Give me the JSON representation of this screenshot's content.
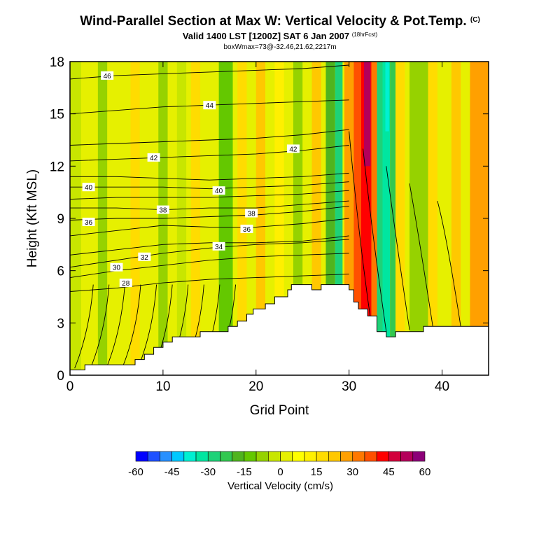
{
  "header": {
    "title": "Wind-Parallel Section at Max W: Vertical Velocity & Pot.Temp.",
    "title_mark": "(C)",
    "valid_line": "Valid 1400 LST [1200Z] SAT 6 Jan 2007",
    "forecast_tag": "(18hrFcst)",
    "box_line": "boxWmax=73@-32.46,21.62,2217m"
  },
  "chart_data": {
    "type": "heatmap",
    "xlabel": "Grid Point",
    "ylabel": "Height (Kft MSL)",
    "xlim": [
      0,
      45
    ],
    "ylim": [
      0,
      18
    ],
    "xticks": [
      0,
      10,
      20,
      30,
      40
    ],
    "yticks": [
      0,
      3,
      6,
      9,
      12,
      15,
      18
    ],
    "colorbar": {
      "label": "Vertical Velocity (cm/s)",
      "levels": [
        -60,
        -55,
        -50,
        -45,
        -40,
        -35,
        -30,
        -25,
        -20,
        -15,
        -10,
        -5,
        0,
        5,
        10,
        15,
        20,
        25,
        30,
        35,
        40,
        45,
        50,
        55,
        60
      ],
      "tick_labels": [
        -60,
        -45,
        -30,
        -15,
        0,
        15,
        30,
        45,
        60
      ],
      "colors": [
        "#0000ff",
        "#1e50ff",
        "#2890ff",
        "#00c8ff",
        "#00f0d2",
        "#00e6a0",
        "#1ed278",
        "#32c850",
        "#50b41e",
        "#64c800",
        "#96d200",
        "#c8e600",
        "#e6f000",
        "#ffff00",
        "#fff000",
        "#ffdc00",
        "#ffc800",
        "#ffa000",
        "#ff7800",
        "#ff5000",
        "#ff0000",
        "#d2003c",
        "#b4005a",
        "#8c0078"
      ]
    },
    "terrain": [
      [
        0,
        0.3
      ],
      [
        1.6,
        0.3
      ],
      [
        1.6,
        0.6
      ],
      [
        7,
        0.6
      ],
      [
        7,
        0.9
      ],
      [
        8,
        0.9
      ],
      [
        8,
        1.2
      ],
      [
        9,
        1.2
      ],
      [
        9,
        1.6
      ],
      [
        10,
        1.6
      ],
      [
        10,
        1.9
      ],
      [
        11,
        1.9
      ],
      [
        11,
        2.2
      ],
      [
        14,
        2.2
      ],
      [
        14,
        2.5
      ],
      [
        17,
        2.5
      ],
      [
        17,
        2.8
      ],
      [
        18,
        2.8
      ],
      [
        18,
        3.1
      ],
      [
        19,
        3.1
      ],
      [
        19,
        3.5
      ],
      [
        19.7,
        3.5
      ],
      [
        19.7,
        3.8
      ],
      [
        21,
        3.8
      ],
      [
        21,
        4.1
      ],
      [
        22,
        4.1
      ],
      [
        22,
        4.5
      ],
      [
        23.4,
        4.5
      ],
      [
        23.4,
        4.9
      ],
      [
        23.8,
        4.9
      ],
      [
        23.8,
        5.2
      ],
      [
        26,
        5.2
      ],
      [
        26,
        4.9
      ],
      [
        27,
        4.9
      ],
      [
        27,
        5.2
      ],
      [
        30,
        5.2
      ],
      [
        30,
        4.9
      ],
      [
        30.5,
        4.9
      ],
      [
        30.5,
        4.2
      ],
      [
        31,
        4.2
      ],
      [
        31,
        3.8
      ],
      [
        32,
        3.8
      ],
      [
        32,
        3.4
      ],
      [
        33,
        3.4
      ],
      [
        33,
        2.5
      ],
      [
        34,
        2.5
      ],
      [
        34,
        2.2
      ],
      [
        35,
        2.2
      ],
      [
        35,
        2.5
      ],
      [
        38,
        2.5
      ],
      [
        38,
        2.8
      ],
      [
        45,
        2.8
      ],
      [
        45,
        0
      ],
      [
        0,
        0
      ]
    ],
    "theta_contours": [
      {
        "label": "28",
        "label_at": [
          6.0,
          5.3
        ],
        "x": [
          0,
          5,
          10,
          15,
          20,
          25,
          30
        ],
        "y": [
          4.8,
          5.0,
          5.3,
          5.5,
          5.6,
          5.7,
          5.8
        ]
      },
      {
        "label": "30",
        "label_at": [
          5.0,
          6.2
        ],
        "x": [
          0,
          5,
          10,
          15,
          20,
          25,
          30
        ],
        "y": [
          5.6,
          6.0,
          6.3,
          6.6,
          6.8,
          6.9,
          7.0
        ]
      },
      {
        "label": "32",
        "label_at": [
          8.0,
          6.8
        ],
        "x": [
          0,
          5,
          10,
          15,
          20,
          25,
          30
        ],
        "y": [
          6.2,
          6.6,
          7.0,
          7.3,
          7.5,
          7.6,
          7.8
        ]
      },
      {
        "label": "34",
        "label_at": [
          16.0,
          7.4
        ],
        "x": [
          0,
          5,
          10,
          15,
          20,
          25,
          30
        ],
        "y": [
          6.9,
          7.2,
          7.5,
          7.6,
          7.6,
          7.7,
          8.0
        ]
      },
      {
        "label": "36",
        "label_at": [
          19.0,
          8.4
        ],
        "x": [
          0,
          5,
          10,
          15,
          20,
          25,
          30
        ],
        "y": [
          8.0,
          8.3,
          8.6,
          8.5,
          8.5,
          8.7,
          9.0
        ]
      },
      {
        "label": "36",
        "label_at": [
          2.0,
          8.8
        ],
        "x": [
          0,
          5,
          10,
          15,
          20,
          25,
          30
        ],
        "y": [
          8.9,
          9.0,
          9.0,
          9.1,
          9.2,
          9.4,
          9.7
        ]
      },
      {
        "label": "38",
        "label_at": [
          10.0,
          9.5
        ],
        "x": [
          0,
          5,
          10,
          15,
          20,
          25,
          30
        ],
        "y": [
          9.6,
          9.6,
          9.5,
          9.6,
          9.6,
          9.8,
          10.0
        ]
      },
      {
        "label": "38",
        "label_at": [
          19.5,
          9.3
        ],
        "x": [
          0,
          5,
          10,
          15,
          20,
          25,
          30
        ],
        "y": [
          10.1,
          10.2,
          10.2,
          10.2,
          10.3,
          10.4,
          10.6
        ]
      },
      {
        "label": "40",
        "label_at": [
          2.0,
          10.8
        ],
        "x": [
          0,
          5,
          10,
          15,
          20,
          25,
          30
        ],
        "y": [
          10.8,
          10.8,
          10.8,
          10.7,
          10.8,
          10.9,
          11.1
        ]
      },
      {
        "label": "40",
        "label_at": [
          16.0,
          10.6
        ],
        "x": [
          0,
          5,
          10,
          15,
          20,
          25,
          30
        ],
        "y": [
          11.4,
          11.4,
          11.3,
          11.2,
          11.3,
          11.4,
          11.6
        ]
      },
      {
        "label": "42",
        "label_at": [
          9.0,
          12.5
        ],
        "x": [
          0,
          5,
          10,
          15,
          20,
          25,
          30
        ],
        "y": [
          12.3,
          12.4,
          12.5,
          12.6,
          12.7,
          12.9,
          13.2
        ]
      },
      {
        "label": "42",
        "label_at": [
          24.0,
          13.0
        ],
        "x": [
          0,
          5,
          10,
          15,
          20,
          25,
          30
        ],
        "y": [
          13.2,
          13.3,
          13.4,
          13.5,
          13.6,
          13.8,
          14.1
        ]
      },
      {
        "label": "44",
        "label_at": [
          15.0,
          15.5
        ],
        "x": [
          0,
          5,
          10,
          15,
          20,
          25,
          30
        ],
        "y": [
          15.0,
          15.2,
          15.4,
          15.5,
          15.6,
          15.7,
          15.8
        ]
      },
      {
        "label": "46",
        "label_at": [
          4.0,
          17.2
        ],
        "x": [
          0,
          5,
          10,
          15,
          20,
          25,
          30
        ],
        "y": [
          17.0,
          17.2,
          17.3,
          17.4,
          17.5,
          17.6,
          17.8
        ]
      }
    ]
  }
}
